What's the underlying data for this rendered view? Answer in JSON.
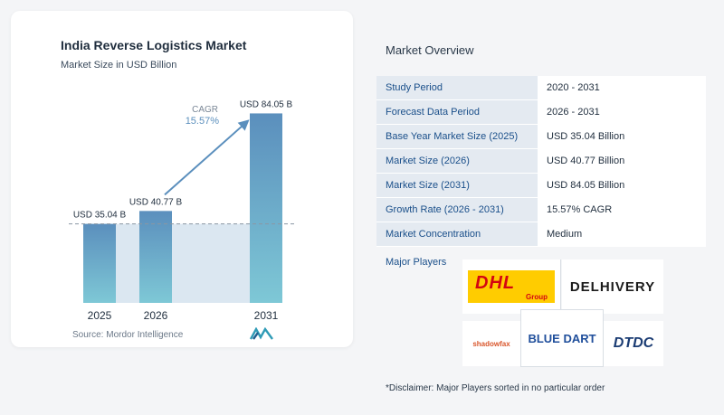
{
  "chart_data": {
    "type": "bar",
    "title": "India Reverse Logistics Market",
    "subtitle": "Market Size in USD Billion",
    "categories": [
      "2025",
      "2026",
      "2031"
    ],
    "values": [
      35.04,
      40.77,
      84.05
    ],
    "data_labels": [
      "USD 35.04 B",
      "USD 40.77 B",
      "USD 84.05 B"
    ],
    "cagr_label": "CAGR",
    "cagr_value": "15.57%",
    "ylim": [
      0,
      90
    ],
    "colors": {
      "bar_top": "#5b8fbd",
      "bar_bottom": "#7ec8d6",
      "baseline_band": "#dbe7f1",
      "arrow": "#5b8fbd"
    }
  },
  "source": "Source: Mordor Intelligence",
  "overview": {
    "title": "Market Overview",
    "rows": [
      {
        "label": "Study Period",
        "value": "2020 - 2031"
      },
      {
        "label": "Forecast Data Period",
        "value": "2026 - 2031"
      },
      {
        "label": "Base Year Market Size (2025)",
        "value": "USD 35.04 Billion"
      },
      {
        "label": "Market Size (2026)",
        "value": "USD 40.77 Billion"
      },
      {
        "label": "Market Size (2031)",
        "value": "USD 84.05 Billion"
      },
      {
        "label": "Growth Rate (2026 - 2031)",
        "value": "15.57% CAGR"
      },
      {
        "label": "Market Concentration",
        "value": "Medium"
      }
    ]
  },
  "players": {
    "title": "Major Players",
    "logos": {
      "dhl": "DHL",
      "dhl_sub": "Group",
      "delhivery": "DELHIVERY",
      "bluedart": "BLUE DART",
      "shadowfax": "shadowfax",
      "dtdc": "DTDC"
    }
  },
  "disclaimer": "*Disclaimer: Major Players sorted in no particular order"
}
